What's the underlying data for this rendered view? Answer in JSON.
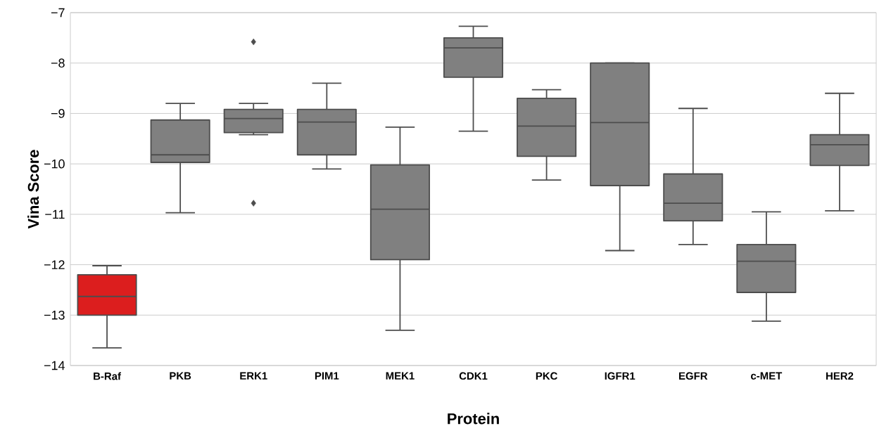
{
  "chart_data": {
    "type": "box",
    "xlabel": "Protein",
    "ylabel": "Vina Score",
    "categories": [
      "B-Raf",
      "PKB",
      "ERK1",
      "PIM1",
      "MEK1",
      "CDK1",
      "PKC",
      "IGFR1",
      "EGFR",
      "c-MET",
      "HER2"
    ],
    "boxes": [
      {
        "low": -13.65,
        "q1": -13.0,
        "median": -12.63,
        "q3": -12.2,
        "high": -12.02
      },
      {
        "low": -10.97,
        "q1": -9.97,
        "median": -9.82,
        "q3": -9.13,
        "high": -8.8
      },
      {
        "low": -9.42,
        "q1": -9.38,
        "median": -9.1,
        "q3": -8.92,
        "high": -8.8,
        "outliers": [
          -7.58,
          -10.78
        ]
      },
      {
        "low": -10.1,
        "q1": -9.82,
        "median": -9.17,
        "q3": -8.92,
        "high": -8.4
      },
      {
        "low": -13.3,
        "q1": -11.9,
        "median": -10.9,
        "q3": -10.02,
        "high": -9.27
      },
      {
        "low": -9.35,
        "q1": -8.28,
        "median": -7.7,
        "q3": -7.5,
        "high": -7.27
      },
      {
        "low": -10.32,
        "q1": -9.85,
        "median": -9.25,
        "q3": -8.7,
        "high": -8.53
      },
      {
        "low": -11.72,
        "q1": -10.43,
        "median": -9.18,
        "q3": -8.0,
        "high": -8.0
      },
      {
        "low": -11.6,
        "q1": -11.13,
        "median": -10.78,
        "q3": -10.2,
        "high": -8.9
      },
      {
        "low": -13.12,
        "q1": -12.55,
        "median": -11.93,
        "q3": -11.6,
        "high": -10.95
      },
      {
        "low": -10.93,
        "q1": -10.03,
        "median": -9.62,
        "q3": -9.42,
        "high": -8.6
      }
    ],
    "colors": [
      "#dc1e1e",
      "#808080",
      "#808080",
      "#808080",
      "#808080",
      "#808080",
      "#808080",
      "#808080",
      "#808080",
      "#808080",
      "#808080"
    ],
    "ylim": [
      -14,
      -7
    ],
    "yticks": [
      {
        "value": -14,
        "label": "−14"
      },
      {
        "value": -13,
        "label": "−13"
      },
      {
        "value": -12,
        "label": "−12"
      },
      {
        "value": -11,
        "label": "−11"
      },
      {
        "value": -10,
        "label": "−10"
      },
      {
        "value": -9,
        "label": "−9"
      },
      {
        "value": -8,
        "label": "−8"
      },
      {
        "value": -7,
        "label": "−7"
      }
    ],
    "grid": "y",
    "marker": "diamond"
  }
}
